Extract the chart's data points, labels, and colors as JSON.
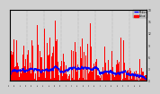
{
  "n_points": 1440,
  "bar_color": "#ff0000",
  "line_color": "#0000ff",
  "background_color": "#d0d0d0",
  "plot_bg_color": "#d8d8d8",
  "grid_color": "#bbbbbb",
  "ylim": [
    0,
    18
  ],
  "xlim": [
    0,
    1440
  ],
  "yticks": [
    0,
    3,
    6,
    9,
    12,
    15,
    18
  ],
  "legend_median": "Median",
  "legend_actual": "Actual",
  "seed": 123
}
